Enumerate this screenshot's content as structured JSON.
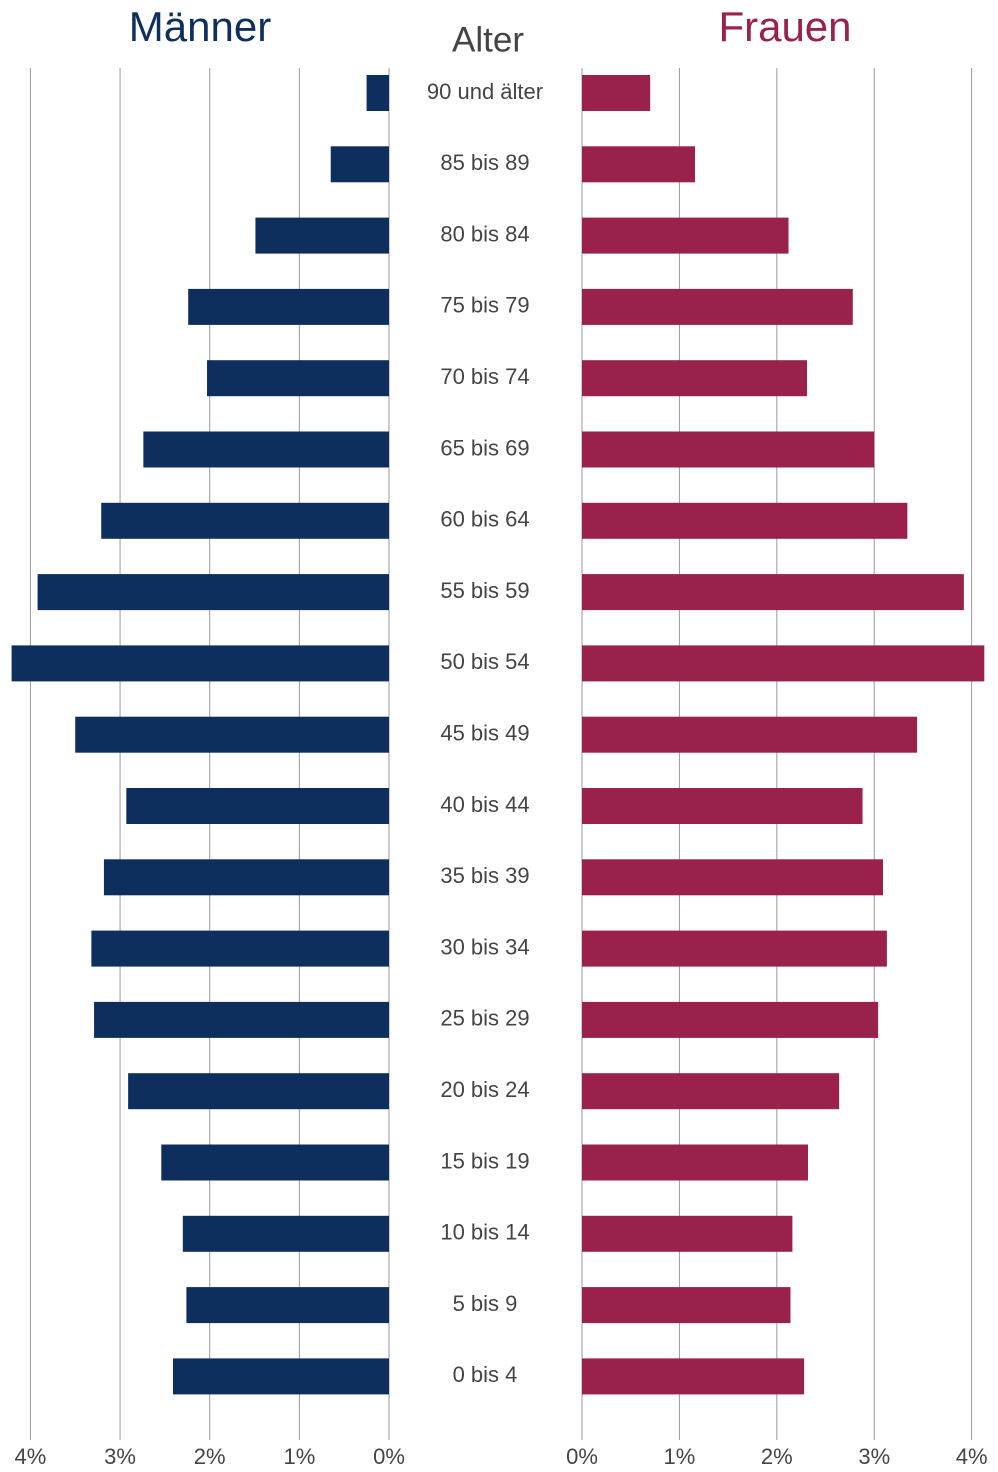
{
  "chart_data": {
    "type": "pyramid",
    "y_label": "Alter",
    "categories": [
      "90 und älter",
      "85 bis 89",
      "80 bis 84",
      "75 bis 79",
      "70 bis 74",
      "65 bis 69",
      "60 bis 64",
      "55 bis 59",
      "50 bis 54",
      "45 bis 49",
      "40 bis 44",
      "35 bis 39",
      "30 bis 34",
      "25 bis 29",
      "20 bis 24",
      "15 bis 19",
      "10 bis 14",
      "5 bis 9",
      "0 bis 4"
    ],
    "series": [
      {
        "name": "Männer",
        "color": "#0e2f5e",
        "values": [
          0.25,
          0.65,
          1.49,
          2.24,
          2.03,
          2.74,
          3.21,
          3.92,
          4.21,
          3.5,
          2.93,
          3.18,
          3.32,
          3.29,
          2.91,
          2.54,
          2.3,
          2.26,
          2.41
        ]
      },
      {
        "name": "Frauen",
        "color": "#9a214c",
        "values": [
          0.7,
          1.16,
          2.12,
          2.78,
          2.31,
          3.0,
          3.34,
          3.92,
          4.13,
          3.44,
          2.88,
          3.09,
          3.13,
          3.04,
          2.64,
          2.32,
          2.16,
          2.14,
          2.28
        ]
      }
    ],
    "xlim": [
      0,
      4.25
    ],
    "xticks": [
      {
        "value": 0,
        "label": "0%"
      },
      {
        "value": 1,
        "label": "1%"
      },
      {
        "value": 2,
        "label": "2%"
      },
      {
        "value": 3,
        "label": "3%"
      },
      {
        "value": 4,
        "label": "4%"
      }
    ],
    "grid": true
  }
}
